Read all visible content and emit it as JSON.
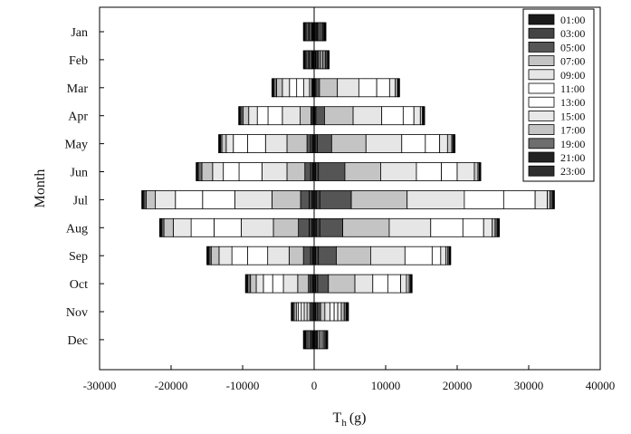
{
  "chart_data": {
    "type": "bar",
    "orientation": "horizontal-diverging",
    "stacked": true,
    "xlabel_main": "T",
    "xlabel_sub": "h",
    "xlabel_unit": "(g)",
    "ylabel": "Month",
    "xlim": [
      -30000,
      40000
    ],
    "xticks": [
      -30000,
      -20000,
      -10000,
      0,
      10000,
      20000,
      30000,
      40000
    ],
    "xtick_labels": [
      "-30000",
      "-20000",
      "-10000",
      "0",
      "10000",
      "20000",
      "30000",
      "40000"
    ],
    "categories": [
      "Jan",
      "Feb",
      "Mar",
      "Apr",
      "May",
      "Jun",
      "Jul",
      "Aug",
      "Sep",
      "Oct",
      "Nov",
      "Dec"
    ],
    "legend_position": "top-right",
    "legend": [
      {
        "label": "01:00",
        "color": "#1a1a1a"
      },
      {
        "label": "03:00",
        "color": "#444444"
      },
      {
        "label": "05:00",
        "color": "#555555"
      },
      {
        "label": "07:00",
        "color": "#c4c4c4"
      },
      {
        "label": "09:00",
        "color": "#e6e6e6"
      },
      {
        "label": "11:00",
        "color": "#ffffff"
      },
      {
        "label": "13:00",
        "color": "#ffffff"
      },
      {
        "label": "15:00",
        "color": "#e8e8e8"
      },
      {
        "label": "17:00",
        "color": "#c4c4c4"
      },
      {
        "label": "19:00",
        "color": "#6e6e6e"
      },
      {
        "label": "21:00",
        "color": "#222222"
      },
      {
        "label": "23:00",
        "color": "#2e2e2e"
      }
    ],
    "series_order_note": "",
    "months": [
      {
        "name": "Jan",
        "negative": [
          -100,
          -100,
          -100,
          -100,
          -150,
          -150,
          -150,
          -150,
          -150,
          -150,
          -100,
          -100
        ],
        "positive": [
          150,
          150,
          150,
          150,
          150,
          150,
          150,
          150,
          150,
          100,
          100,
          100
        ]
      },
      {
        "name": "Feb",
        "negative": [
          -100,
          -100,
          -100,
          -100,
          -150,
          -150,
          -150,
          -150,
          -150,
          -150,
          -100,
          -100
        ],
        "positive": [
          200,
          200,
          200,
          200,
          200,
          200,
          200,
          200,
          150,
          150,
          100,
          100
        ]
      },
      {
        "name": "Mar",
        "negative": [
          -100,
          -100,
          -150,
          -300,
          -800,
          -1000,
          -1000,
          -1000,
          -800,
          -400,
          -150,
          -100
        ],
        "positive": [
          100,
          150,
          500,
          2500,
          3000,
          2500,
          1800,
          800,
          300,
          100,
          100,
          100
        ]
      },
      {
        "name": "Apr",
        "negative": [
          -100,
          -150,
          -200,
          -1500,
          -2500,
          -2000,
          -1500,
          -1200,
          -800,
          -300,
          -200,
          -100
        ],
        "positive": [
          100,
          150,
          1200,
          4000,
          4000,
          3000,
          1500,
          900,
          300,
          100,
          100,
          100
        ]
      },
      {
        "name": "May",
        "negative": [
          -200,
          -300,
          -500,
          -2800,
          -3000,
          -2500,
          -2000,
          -1000,
          -600,
          -200,
          -150,
          -100
        ],
        "positive": [
          150,
          300,
          2000,
          4800,
          5000,
          3300,
          2000,
          1100,
          600,
          200,
          150,
          100
        ]
      },
      {
        "name": "Jun",
        "negative": [
          -200,
          -300,
          -800,
          -2500,
          -3500,
          -3200,
          -2200,
          -1500,
          -1500,
          -500,
          -200,
          -100
        ],
        "positive": [
          200,
          400,
          3700,
          5000,
          5000,
          3500,
          2200,
          2400,
          500,
          200,
          100,
          100
        ]
      },
      {
        "name": "Jul",
        "negative": [
          -300,
          -400,
          -1200,
          -4000,
          -5200,
          -4500,
          -3800,
          -2800,
          -1300,
          -300,
          -200,
          -100
        ],
        "positive": [
          300,
          500,
          4400,
          7800,
          8000,
          5500,
          4400,
          1700,
          400,
          300,
          200,
          100
        ]
      },
      {
        "name": "Aug",
        "negative": [
          -300,
          -400,
          -1500,
          -3500,
          -4500,
          -3800,
          -3200,
          -2500,
          -1300,
          -300,
          -200,
          -100
        ],
        "positive": [
          300,
          500,
          3200,
          6500,
          5800,
          4500,
          2900,
          1200,
          400,
          300,
          200,
          100
        ]
      },
      {
        "name": "Sep",
        "negative": [
          -200,
          -300,
          -1000,
          -2000,
          -3000,
          -2800,
          -2200,
          -1800,
          -1100,
          -300,
          -200,
          -100
        ],
        "positive": [
          200,
          400,
          2500,
          4800,
          4800,
          3800,
          1200,
          700,
          300,
          200,
          100,
          100
        ]
      },
      {
        "name": "Oct",
        "negative": [
          -200,
          -300,
          -300,
          -1500,
          -2000,
          -1500,
          -1300,
          -1000,
          -800,
          -400,
          -200,
          -100
        ],
        "positive": [
          200,
          300,
          1500,
          3700,
          2500,
          2100,
          1800,
          800,
          400,
          200,
          100,
          100
        ]
      },
      {
        "name": "Nov",
        "negative": [
          -100,
          -200,
          -300,
          -400,
          -400,
          -400,
          -400,
          -300,
          -300,
          -200,
          -100,
          -100
        ],
        "positive": [
          200,
          300,
          400,
          600,
          700,
          600,
          500,
          500,
          400,
          300,
          200,
          100
        ]
      },
      {
        "name": "Dec",
        "negative": [
          -100,
          -100,
          -100,
          -150,
          -150,
          -150,
          -150,
          -150,
          -150,
          -100,
          -100,
          -100
        ],
        "positive": [
          150,
          150,
          150,
          200,
          200,
          200,
          200,
          150,
          150,
          150,
          100,
          100
        ]
      }
    ]
  }
}
